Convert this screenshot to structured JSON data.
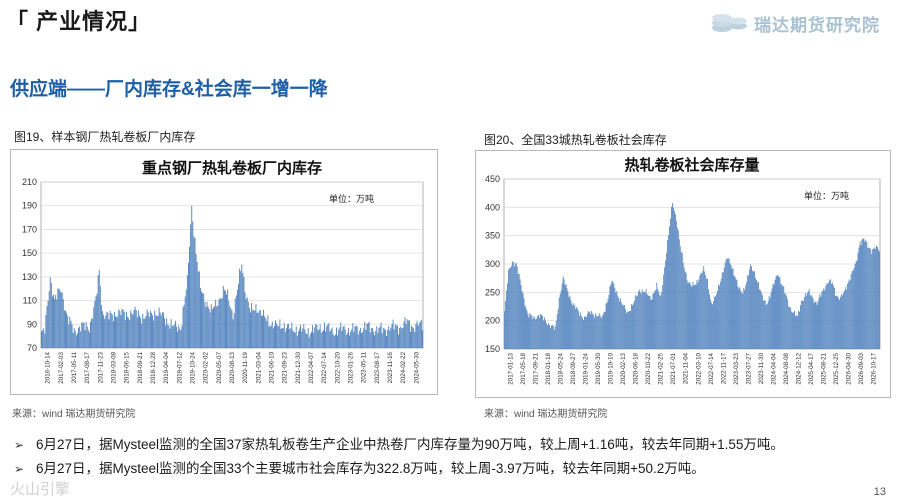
{
  "header": {
    "section_title": "「 产业情况」",
    "logo_text": "瑞达期货研究院",
    "logo_icon": "coin-stack-icon",
    "logo_color": "#a9c1d2"
  },
  "headline": "供应端——厂内库存&社会库一增一降",
  "figures": [
    {
      "caption": "图19、样本钢厂热轧卷板厂内库存",
      "source": "来源：wind   瑞达期货研究院"
    },
    {
      "caption": "图20、全国33城热轧卷板社会库存",
      "source": "来源：wind   瑞达期货研究院"
    }
  ],
  "chart_data": [
    {
      "type": "bar",
      "title": "重点钢厂热轧卷板厂内库存",
      "unit_label": "单位：万吨",
      "bar_color": "#4f81bd",
      "ylim": [
        70,
        210
      ],
      "yticks": [
        70,
        90,
        110,
        130,
        150,
        170,
        190,
        210
      ],
      "grid": true,
      "x_tick_labels": [
        "2016-10-14",
        "2017-02-03",
        "2017-05-11",
        "2017-08-17",
        "2017-11-23",
        "2018-03-08",
        "2018-06-15",
        "2018-09-21",
        "2018-12-28",
        "2019-04-04",
        "2019-07-12",
        "2019-10-24",
        "2020-02-02",
        "2020-05-07",
        "2020-08-13",
        "2020-11-19",
        "2021-03-04",
        "2021-06-10",
        "2021-09-23",
        "2021-12-30",
        "2022-04-07",
        "2022-07-14",
        "2022-10-20",
        "2023-01-26",
        "2023-05-11",
        "2023-08-17",
        "2023-11-16",
        "2024-02-22",
        "2024-05-30"
      ],
      "keypoints": [
        [
          0,
          82
        ],
        [
          3,
          84
        ],
        [
          8,
          130
        ],
        [
          12,
          110
        ],
        [
          18,
          120
        ],
        [
          24,
          95
        ],
        [
          30,
          84
        ],
        [
          36,
          88
        ],
        [
          44,
          88
        ],
        [
          50,
          110
        ],
        [
          53,
          135
        ],
        [
          56,
          100
        ],
        [
          62,
          96
        ],
        [
          70,
          100
        ],
        [
          78,
          98
        ],
        [
          86,
          100
        ],
        [
          94,
          96
        ],
        [
          104,
          100
        ],
        [
          112,
          97
        ],
        [
          120,
          88
        ],
        [
          128,
          88
        ],
        [
          134,
          125
        ],
        [
          138,
          190
        ],
        [
          142,
          150
        ],
        [
          146,
          120
        ],
        [
          150,
          112
        ],
        [
          156,
          100
        ],
        [
          162,
          110
        ],
        [
          168,
          118
        ],
        [
          172,
          112
        ],
        [
          176,
          98
        ],
        [
          180,
          118
        ],
        [
          184,
          142
        ],
        [
          188,
          115
        ],
        [
          192,
          100
        ],
        [
          198,
          105
        ],
        [
          204,
          96
        ],
        [
          210,
          92
        ],
        [
          216,
          88
        ],
        [
          222,
          90
        ],
        [
          228,
          86
        ],
        [
          236,
          86
        ],
        [
          244,
          84
        ],
        [
          252,
          86
        ],
        [
          260,
          88
        ],
        [
          268,
          84
        ],
        [
          276,
          86
        ],
        [
          284,
          85
        ],
        [
          292,
          86
        ],
        [
          300,
          88
        ],
        [
          308,
          85
        ],
        [
          316,
          86
        ],
        [
          324,
          88
        ],
        [
          330,
          88
        ],
        [
          336,
          92
        ],
        [
          342,
          88
        ],
        [
          350,
          90
        ]
      ]
    },
    {
      "type": "bar",
      "title": "热轧卷板社会库存量",
      "unit_label": "单位：万吨",
      "bar_color": "#4f81bd",
      "ylim": [
        150,
        450
      ],
      "yticks": [
        150,
        200,
        250,
        300,
        350,
        400,
        450
      ],
      "grid": true,
      "x_tick_labels": [
        "2017-01-13",
        "2017-05-18",
        "2017-09-21",
        "2018-01-18",
        "2018-05-24",
        "2018-09-27",
        "2019-01-24",
        "2019-05-30",
        "2019-10-10",
        "2020-02-13",
        "2020-06-18",
        "2020-10-22",
        "2021-02-25",
        "2021-07-01",
        "2021-11-04",
        "2022-03-10",
        "2022-07-14",
        "2022-11-17",
        "2023-03-23",
        "2023-07-27",
        "2023-11-30",
        "2024-04-04",
        "2024-08-08",
        "2024-12-12",
        "2025-04-17",
        "2025-08-21",
        "2025-12-25",
        "2026-04-30",
        "2026-09-03",
        "2026-10-17"
      ],
      "keypoints": [
        [
          0,
          215
        ],
        [
          4,
          285
        ],
        [
          8,
          305
        ],
        [
          12,
          300
        ],
        [
          16,
          270
        ],
        [
          20,
          240
        ],
        [
          24,
          210
        ],
        [
          30,
          205
        ],
        [
          36,
          210
        ],
        [
          42,
          200
        ],
        [
          48,
          190
        ],
        [
          52,
          185
        ],
        [
          56,
          240
        ],
        [
          60,
          275
        ],
        [
          64,
          255
        ],
        [
          70,
          230
        ],
        [
          76,
          215
        ],
        [
          82,
          205
        ],
        [
          88,
          215
        ],
        [
          94,
          210
        ],
        [
          100,
          205
        ],
        [
          106,
          240
        ],
        [
          110,
          270
        ],
        [
          114,
          255
        ],
        [
          120,
          230
        ],
        [
          126,
          215
        ],
        [
          132,
          230
        ],
        [
          138,
          255
        ],
        [
          144,
          250
        ],
        [
          150,
          240
        ],
        [
          156,
          260
        ],
        [
          160,
          240
        ],
        [
          164,
          295
        ],
        [
          168,
          350
        ],
        [
          172,
          410
        ],
        [
          176,
          380
        ],
        [
          180,
          330
        ],
        [
          184,
          295
        ],
        [
          188,
          270
        ],
        [
          192,
          260
        ],
        [
          196,
          265
        ],
        [
          200,
          280
        ],
        [
          204,
          290
        ],
        [
          208,
          270
        ],
        [
          212,
          230
        ],
        [
          216,
          240
        ],
        [
          220,
          265
        ],
        [
          224,
          290
        ],
        [
          228,
          310
        ],
        [
          232,
          300
        ],
        [
          236,
          280
        ],
        [
          240,
          255
        ],
        [
          244,
          250
        ],
        [
          248,
          270
        ],
        [
          252,
          295
        ],
        [
          256,
          285
        ],
        [
          260,
          265
        ],
        [
          264,
          240
        ],
        [
          268,
          230
        ],
        [
          272,
          245
        ],
        [
          276,
          265
        ],
        [
          280,
          285
        ],
        [
          284,
          265
        ],
        [
          288,
          245
        ],
        [
          292,
          225
        ],
        [
          296,
          215
        ],
        [
          300,
          205
        ],
        [
          304,
          235
        ],
        [
          308,
          245
        ],
        [
          312,
          250
        ],
        [
          316,
          240
        ],
        [
          320,
          230
        ],
        [
          324,
          245
        ],
        [
          328,
          260
        ],
        [
          332,
          270
        ],
        [
          336,
          265
        ],
        [
          340,
          245
        ],
        [
          344,
          240
        ],
        [
          348,
          250
        ],
        [
          352,
          270
        ],
        [
          356,
          285
        ],
        [
          360,
          300
        ],
        [
          364,
          340
        ],
        [
          368,
          345
        ],
        [
          372,
          330
        ],
        [
          376,
          325
        ],
        [
          380,
          330
        ],
        [
          384,
          322
        ]
      ]
    }
  ],
  "bullets": [
    {
      "icon": "arrow-bullet-icon",
      "text": "6月27日，据Mysteel监测的全国37家热轧板卷生产企业中热卷厂内库存量为90万吨，较上周+1.16吨，较去年同期+1.55万吨。"
    },
    {
      "icon": "arrow-bullet-icon",
      "text": "6月27日，据Mysteel监测的全国33个主要城市社会库存为322.8万吨，较上周-3.97万吨，较去年同期+50.2万吨。"
    }
  ],
  "page_number": "13",
  "watermark": "火山引擎"
}
